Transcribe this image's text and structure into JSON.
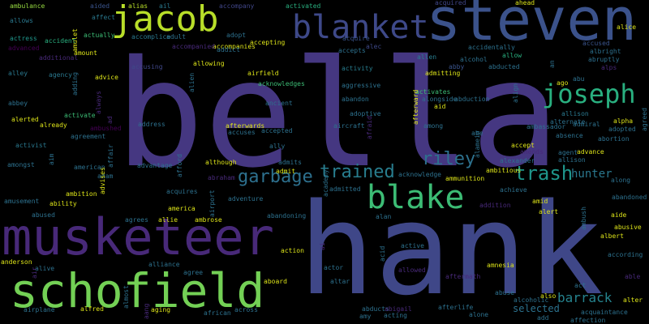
{
  "words": [
    {
      "t": "bella",
      "c": "#453781"
    },
    {
      "t": "hank",
      "c": "#3f4788"
    },
    {
      "t": "steven",
      "c": "#3b528b"
    },
    {
      "t": "musketeer",
      "c": "#482979"
    },
    {
      "t": "schofield",
      "c": "#73d055"
    },
    {
      "t": "jacob",
      "c": "#b8de29"
    },
    {
      "t": "blanket",
      "c": "#3e4989"
    },
    {
      "t": "joseph",
      "c": "#29af7f"
    },
    {
      "t": "blake",
      "c": "#3cbc75"
    },
    {
      "t": "garbage",
      "c": "#2d708e"
    },
    {
      "t": "trained",
      "c": "#287d8e"
    },
    {
      "t": "riley",
      "c": "#2d718e"
    },
    {
      "t": "trash",
      "c": "#1f968b"
    },
    {
      "t": "hunter",
      "c": "#2a788e"
    },
    {
      "t": "barrack",
      "c": "#25838e"
    },
    {
      "t": "selected",
      "c": "#2c728e"
    },
    {
      "t": "ambulance",
      "c": "#95d840"
    },
    {
      "t": "aided",
      "c": "#3a548c"
    },
    {
      "t": "alias",
      "c": "#b8de29"
    },
    {
      "t": "ail",
      "c": "#2a788e"
    },
    {
      "t": "affect",
      "c": "#2a788e"
    },
    {
      "t": "accompany",
      "c": "#404688"
    },
    {
      "t": "activated",
      "c": "#29af7f"
    },
    {
      "t": "acquired",
      "c": "#404688"
    },
    {
      "t": "ahead",
      "c": "#dce319"
    },
    {
      "t": "alice",
      "c": "#dce319"
    },
    {
      "t": "allows",
      "c": "#2a788e"
    },
    {
      "t": "actually",
      "c": "#3cbc75"
    },
    {
      "t": "accomplice",
      "c": "#2a788e"
    },
    {
      "t": "adult",
      "c": "#2d708e"
    },
    {
      "t": "accompanies",
      "c": "#dce319"
    },
    {
      "t": "adopt",
      "c": "#2d708e"
    },
    {
      "t": "actress",
      "c": "#1f968b"
    },
    {
      "t": "accident",
      "c": "#29af7f"
    },
    {
      "t": "accepting",
      "c": "#dce319"
    },
    {
      "t": "acquire",
      "c": "#3a548c"
    },
    {
      "t": "alec",
      "c": "#3e4989"
    },
    {
      "t": "allen",
      "c": "#287d8e"
    },
    {
      "t": "accidentally",
      "c": "#2d718e"
    },
    {
      "t": "allow",
      "c": "#29af7f"
    },
    {
      "t": "advanced",
      "c": "#440154"
    },
    {
      "t": "amount",
      "c": "#dce319"
    },
    {
      "t": "accompanied",
      "c": "#482979"
    },
    {
      "t": "addict",
      "c": "#2d718e"
    },
    {
      "t": "accepts",
      "c": "#2d718e"
    },
    {
      "t": "alcohol",
      "c": "#2d708e"
    },
    {
      "t": "abby",
      "c": "#3a548c"
    },
    {
      "t": "abducted",
      "c": "#2d718e"
    },
    {
      "t": "albright",
      "c": "#2d708e"
    },
    {
      "t": "abruptly",
      "c": "#2d708e"
    },
    {
      "t": "additional",
      "c": "#482979"
    },
    {
      "t": "accused",
      "c": "#3a548c"
    },
    {
      "t": "accusing",
      "c": "#3f4788"
    },
    {
      "t": "allowing",
      "c": "#dce319"
    },
    {
      "t": "alley",
      "c": "#2a788e"
    },
    {
      "t": "agency",
      "c": "#2a788e"
    },
    {
      "t": "advice",
      "c": "#dce319"
    },
    {
      "t": "airfield",
      "c": "#dce319"
    },
    {
      "t": "activity",
      "c": "#287d8e"
    },
    {
      "t": "admitting",
      "c": "#dce319"
    },
    {
      "t": "alps",
      "c": "#482979"
    },
    {
      "t": "acknowledges",
      "c": "#3cbc75"
    },
    {
      "t": "aggressive",
      "c": "#2d718e"
    },
    {
      "t": "abbey",
      "c": "#2d718e"
    },
    {
      "t": "ancient",
      "c": "#2d718e"
    },
    {
      "t": "abandon",
      "c": "#2d718e"
    },
    {
      "t": "activates",
      "c": "#3cbc75"
    },
    {
      "t": "alongside",
      "c": "#2d718e"
    },
    {
      "t": "abduction",
      "c": "#2d718e"
    },
    {
      "t": "aid",
      "c": "#dce319"
    },
    {
      "t": "ago",
      "c": "#dce319"
    },
    {
      "t": "abu",
      "c": "#2d718e"
    },
    {
      "t": "alerted",
      "c": "#dce319"
    },
    {
      "t": "activate",
      "c": "#3cbc75"
    },
    {
      "t": "already",
      "c": "#dce319"
    },
    {
      "t": "ambushed",
      "c": "#440154"
    },
    {
      "t": "afterwards",
      "c": "#dce319"
    },
    {
      "t": "adoptive",
      "c": "#2d718e"
    },
    {
      "t": "among",
      "c": "#2d718e"
    },
    {
      "t": "allison",
      "c": "#2a788e"
    },
    {
      "t": "alternate",
      "c": "#2d718e"
    },
    {
      "t": "ambassador",
      "c": "#2d718e"
    },
    {
      "t": "admiral",
      "c": "#2d718e"
    },
    {
      "t": "adopted",
      "c": "#2d718e"
    },
    {
      "t": "alpha",
      "c": "#dce319"
    },
    {
      "t": "address",
      "c": "#2d718e"
    },
    {
      "t": "agreement",
      "c": "#2d718e"
    },
    {
      "t": "accuses",
      "c": "#2d718e"
    },
    {
      "t": "accepted",
      "c": "#2d718e"
    },
    {
      "t": "aircraft",
      "c": "#2d718e"
    },
    {
      "t": "abe",
      "c": "#2d718e"
    },
    {
      "t": "absence",
      "c": "#2d718e"
    },
    {
      "t": "abortion",
      "c": "#2d718e"
    },
    {
      "t": "activist",
      "c": "#2a788e"
    },
    {
      "t": "ally",
      "c": "#2d718e"
    },
    {
      "t": "accept",
      "c": "#dce319"
    },
    {
      "t": "amends",
      "c": "#482979"
    },
    {
      "t": "agent",
      "c": "#2d718e"
    },
    {
      "t": "advance",
      "c": "#dce319"
    },
    {
      "t": "amongst",
      "c": "#2d718e"
    },
    {
      "t": "advantage",
      "c": "#2d718e"
    },
    {
      "t": "admits",
      "c": "#2d718e"
    },
    {
      "t": "alexander",
      "c": "#2d718e"
    },
    {
      "t": "allison",
      "c": "#2d718e"
    },
    {
      "t": "american",
      "c": "#2d718e"
    },
    {
      "t": "although",
      "c": "#dce319"
    },
    {
      "t": "admit",
      "c": "#dce319"
    },
    {
      "t": "acknowledge",
      "c": "#2d718e"
    },
    {
      "t": "ambitious",
      "c": "#dce319"
    },
    {
      "t": "adam",
      "c": "#2d718e"
    },
    {
      "t": "abraham",
      "c": "#482979"
    },
    {
      "t": "ammunition",
      "c": "#dce319"
    },
    {
      "t": "along",
      "c": "#2d718e"
    },
    {
      "t": "amusement",
      "c": "#2d718e"
    },
    {
      "t": "ambition",
      "c": "#dce319"
    },
    {
      "t": "acquires",
      "c": "#2d718e"
    },
    {
      "t": "adventure",
      "c": "#2d718e"
    },
    {
      "t": "admitted",
      "c": "#2d718e"
    },
    {
      "t": "achieve",
      "c": "#2d718e"
    },
    {
      "t": "abandoned",
      "c": "#2d718e"
    },
    {
      "t": "ability",
      "c": "#dce319"
    },
    {
      "t": "america",
      "c": "#dce319"
    },
    {
      "t": "addition",
      "c": "#482979"
    },
    {
      "t": "amid",
      "c": "#dce319"
    },
    {
      "t": "abused",
      "c": "#2d718e"
    },
    {
      "t": "agrees",
      "c": "#2d718e"
    },
    {
      "t": "allie",
      "c": "#dce319"
    },
    {
      "t": "ambrose",
      "c": "#dce319"
    },
    {
      "t": "abandoning",
      "c": "#2d718e"
    },
    {
      "t": "alan",
      "c": "#2d718e"
    },
    {
      "t": "alert",
      "c": "#dce319"
    },
    {
      "t": "aide",
      "c": "#dce319"
    },
    {
      "t": "abusive",
      "c": "#dce319"
    },
    {
      "t": "albert",
      "c": "#dce319"
    },
    {
      "t": "action",
      "c": "#dce319"
    },
    {
      "t": "active",
      "c": "#2d718e"
    },
    {
      "t": "according",
      "c": "#2d718e"
    },
    {
      "t": "anderson",
      "c": "#dce319"
    },
    {
      "t": "alliance",
      "c": "#2d718e"
    },
    {
      "t": "alive",
      "c": "#2d718e"
    },
    {
      "t": "agree",
      "c": "#2d718e"
    },
    {
      "t": "actor",
      "c": "#2d718e"
    },
    {
      "t": "allowed",
      "c": "#482979"
    },
    {
      "t": "amnesia",
      "c": "#dce319"
    },
    {
      "t": "able",
      "c": "#482979"
    },
    {
      "t": "aboard",
      "c": "#dce319"
    },
    {
      "t": "altar",
      "c": "#2d718e"
    },
    {
      "t": "act",
      "c": "#2d718e"
    },
    {
      "t": "alter",
      "c": "#dce319"
    },
    {
      "t": "aftermath",
      "c": "#482979"
    },
    {
      "t": "abuse",
      "c": "#2d718e"
    },
    {
      "t": "alcoholic",
      "c": "#2d718e"
    },
    {
      "t": "also",
      "c": "#dce319"
    },
    {
      "t": "airplane",
      "c": "#2d718e"
    },
    {
      "t": "alfred",
      "c": "#dce319"
    },
    {
      "t": "aging",
      "c": "#dce319"
    },
    {
      "t": "african",
      "c": "#2d718e"
    },
    {
      "t": "across",
      "c": "#2d718e"
    },
    {
      "t": "abducts",
      "c": "#2d718e"
    },
    {
      "t": "abigail",
      "c": "#482979"
    },
    {
      "t": "afterlife",
      "c": "#2d718e"
    },
    {
      "t": "alone",
      "c": "#2d718e"
    },
    {
      "t": "amy",
      "c": "#2d718e"
    },
    {
      "t": "acting",
      "c": "#2d718e"
    },
    {
      "t": "add",
      "c": "#2d718e"
    },
    {
      "t": "acquaintance",
      "c": "#2d718e"
    },
    {
      "t": "affection",
      "c": "#2d718e"
    },
    {
      "t": "amulet",
      "c": "#dce319"
    },
    {
      "t": "admired",
      "c": "#2d718e"
    },
    {
      "t": "age",
      "c": "#2d718e"
    },
    {
      "t": "an",
      "c": "#2d718e"
    },
    {
      "t": "adding",
      "c": "#2d718e"
    },
    {
      "t": "always",
      "c": "#482979"
    },
    {
      "t": "ad",
      "c": "#482979"
    },
    {
      "t": "almost",
      "c": "#2d718e"
    },
    {
      "t": "affair",
      "c": "#2d718e"
    },
    {
      "t": "aim",
      "c": "#2d718e"
    },
    {
      "t": "afford",
      "c": "#2d718e"
    },
    {
      "t": "advises",
      "c": "#dce319"
    },
    {
      "t": "airport",
      "c": "#2d718e"
    },
    {
      "t": "air",
      "c": "#482979"
    },
    {
      "t": "ai",
      "c": "#482979"
    },
    {
      "t": "acid",
      "c": "#2d718e"
    },
    {
      "t": "ambush",
      "c": "#2d718e"
    },
    {
      "t": "academy",
      "c": "#2d718e"
    },
    {
      "t": "afterward",
      "c": "#dce319"
    },
    {
      "t": "afraid",
      "c": "#482979"
    },
    {
      "t": "alien",
      "c": "#2d718e"
    },
    {
      "t": "align",
      "c": "#2d718e"
    },
    {
      "t": "agreed",
      "c": "#2d718e"
    },
    {
      "t": "aang",
      "c": "#482979"
    },
    {
      "t": "alamein",
      "c": "#2d718e"
    },
    {
      "t": "agreeing",
      "c": "#482979"
    },
    {
      "t": "abe",
      "c": "#2d718e"
    }
  ]
}
